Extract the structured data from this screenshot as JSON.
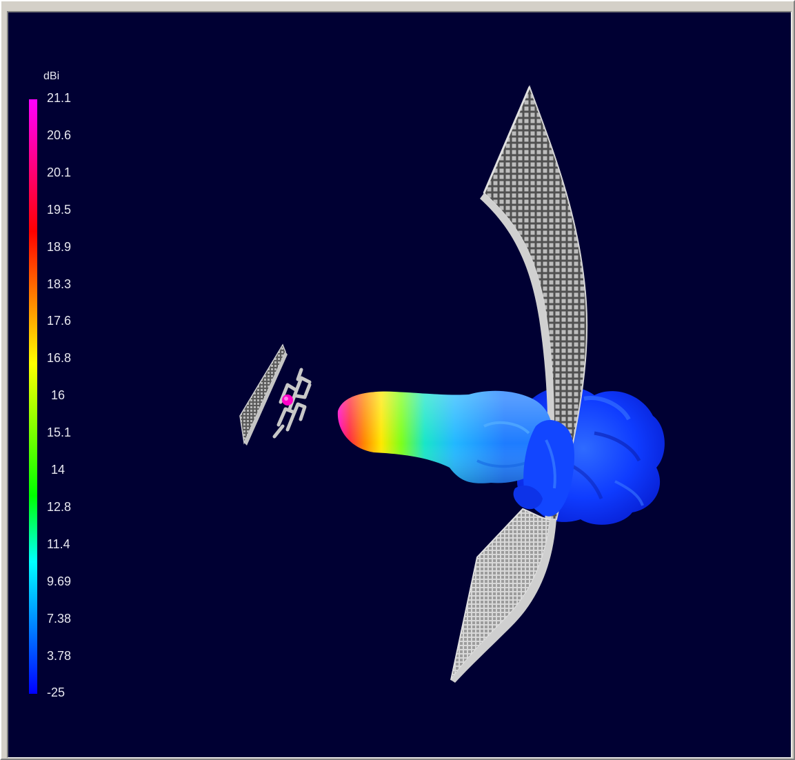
{
  "legend": {
    "unit": "dBi",
    "ticks": [
      "21.1",
      "20.6",
      "20.1",
      "19.5",
      "18.9",
      "18.3",
      "17.6",
      "16.8",
      "16",
      "15.1",
      "14",
      "12.8",
      "11.4",
      "9.69",
      "7.38",
      "3.78",
      "-25"
    ],
    "colors": [
      "#ff00ff",
      "#ff0080",
      "#ff0000",
      "#ff8000",
      "#ffff00",
      "#80ff00",
      "#00ff00",
      "#00ffff",
      "#0080ff",
      "#0000ff"
    ]
  },
  "colors": {
    "background": "#000033",
    "frame": "#d4d0c8",
    "reflector": "#a8a8a8",
    "feed": "#c8c8c8",
    "beam_low": "#0a2cff",
    "beam_mid": "#1e90ff"
  }
}
